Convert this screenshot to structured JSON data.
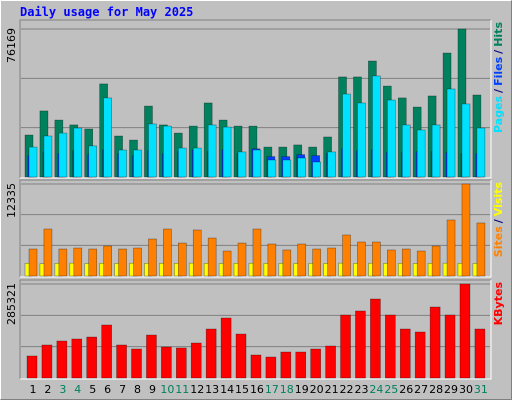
{
  "chart_data": {
    "type": "bar",
    "title": "Daily usage for May 2025",
    "categories": [
      "1",
      "2",
      "3",
      "4",
      "5",
      "6",
      "7",
      "8",
      "9",
      "10",
      "11",
      "12",
      "13",
      "14",
      "15",
      "16",
      "17",
      "18",
      "19",
      "20",
      "21",
      "22",
      "23",
      "24",
      "25",
      "26",
      "27",
      "28",
      "29",
      "30",
      "31"
    ],
    "category_colors": [
      "#000000",
      "#000000",
      "#00805c",
      "#00805c",
      "#000000",
      "#000000",
      "#000000",
      "#000000",
      "#000000",
      "#00805c",
      "#00805c",
      "#000000",
      "#000000",
      "#000000",
      "#000000",
      "#000000",
      "#00805c",
      "#00805c",
      "#000000",
      "#000000",
      "#000000",
      "#000000",
      "#000000",
      "#00805c",
      "#00805c",
      "#000000",
      "#000000",
      "#000000",
      "#000000",
      "#000000",
      "#00805c"
    ],
    "panels": [
      {
        "ylim": [
          0,
          76169
        ],
        "yticks": [
          76169
        ],
        "legend_separator": "/",
        "series": [
          {
            "name": "Hits",
            "color": "#00805c",
            "values": [
              21600,
              34000,
              29300,
              26800,
              24700,
              47900,
              21100,
              19000,
              36500,
              26800,
              22600,
              26200,
              38100,
              29300,
              26200,
              26200,
              15400,
              15400,
              16500,
              15400,
              20600,
              51500,
              51500,
              59700,
              46800,
              40700,
              36000,
              41700,
              63800,
              76169,
              42200
            ]
          },
          {
            "name": "Files",
            "color": "#0040ff",
            "values": [
              11000,
              12500,
              12000,
              13500,
              11500,
              14000,
              12000,
              11000,
              13500,
              12000,
              13000,
              14000,
              13000,
              14000,
              12000,
              14500,
              10500,
              10500,
              11500,
              11000,
              12000,
              14500,
              13500,
              14000,
              12500,
              12500,
              13000,
              13000,
              12500,
              12000,
              12000
            ]
          },
          {
            "name": "Pages",
            "color": "#00e0ff",
            "values": [
              15400,
              21100,
              22600,
              25200,
              16000,
              40700,
              13900,
              13900,
              27300,
              26200,
              14900,
              14900,
              26800,
              25700,
              12900,
              13900,
              8750,
              8750,
              9780,
              7720,
              12900,
              42700,
              38100,
              52000,
              39600,
              26800,
              24200,
              26800,
              45300,
              37600,
              25200
            ]
          }
        ]
      },
      {
        "ylim": [
          0,
          12335
        ],
        "yticks": [
          12335
        ],
        "legend_separator": "/",
        "series": [
          {
            "name": "Visits",
            "color": "#ffff00",
            "values": [
              1700,
              1650,
              1700,
              1720,
              1680,
              1700,
              1690,
              1710,
              1700,
              1690,
              1700,
              1720,
              1700,
              1680,
              1700,
              1710,
              1690,
              1700,
              1680,
              1700,
              1690,
              1720,
              1700,
              1710,
              1690,
              1700,
              1680,
              1700,
              1720,
              1700,
              1690
            ]
          },
          {
            "name": "Sites",
            "color": "#ff8000",
            "values": [
              3620,
              6300,
              3620,
              3750,
              3620,
              4020,
              3620,
              3750,
              4960,
              6300,
              4420,
              6170,
              5090,
              3350,
              4420,
              6300,
              4290,
              3490,
              4290,
              3620,
              3750,
              5500,
              4560,
              4560,
              3490,
              3620,
              3350,
              4020,
              7510,
              12335,
              7110
            ]
          }
        ]
      },
      {
        "ylim": [
          0,
          285321
        ],
        "yticks": [
          285321
        ],
        "legend_separator": "/",
        "series": [
          {
            "name": "KBytes",
            "color": "#ff0000",
            "values": [
              66800,
              100200,
              112300,
              118400,
              124400,
              160900,
              100200,
              88000,
              130500,
              94100,
              91100,
              106200,
              148700,
              182100,
              133500,
              69800,
              63700,
              78900,
              78900,
              88000,
              97100,
              191200,
              203400,
              239800,
              191200,
              148700,
              139600,
              215500,
              191200,
              285321,
              148700
            ]
          }
        ]
      }
    ]
  }
}
